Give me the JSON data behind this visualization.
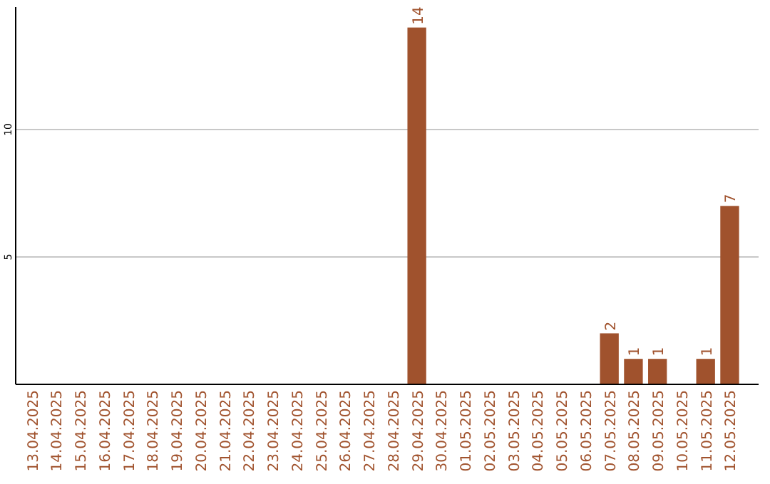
{
  "chart_data": {
    "type": "bar",
    "categories": [
      "13.04.2025",
      "14.04.2025",
      "15.04.2025",
      "16.04.2025",
      "17.04.2025",
      "18.04.2025",
      "19.04.2025",
      "20.04.2025",
      "21.04.2025",
      "22.04.2025",
      "23.04.2025",
      "24.04.2025",
      "25.04.2025",
      "26.04.2025",
      "27.04.2025",
      "28.04.2025",
      "29.04.2025",
      "30.04.2025",
      "01.05.2025",
      "02.05.2025",
      "03.05.2025",
      "04.05.2025",
      "05.05.2025",
      "06.05.2025",
      "07.05.2025",
      "08.05.2025",
      "09.05.2025",
      "10.05.2025",
      "11.05.2025",
      "12.05.2025"
    ],
    "values": [
      0,
      0,
      0,
      0,
      0,
      0,
      0,
      0,
      0,
      0,
      0,
      0,
      0,
      0,
      0,
      0,
      14,
      0,
      0,
      0,
      0,
      0,
      0,
      0,
      2,
      1,
      1,
      0,
      1,
      7
    ],
    "value_labels": [
      null,
      null,
      null,
      null,
      null,
      null,
      null,
      null,
      null,
      null,
      null,
      null,
      null,
      null,
      null,
      null,
      "14",
      null,
      null,
      null,
      null,
      null,
      null,
      null,
      "2",
      "1",
      "1",
      null,
      "1",
      "7"
    ],
    "color": "#a0522d",
    "ylim": [
      0,
      14.8
    ],
    "yticks": [
      5,
      10
    ],
    "grid": "y"
  }
}
